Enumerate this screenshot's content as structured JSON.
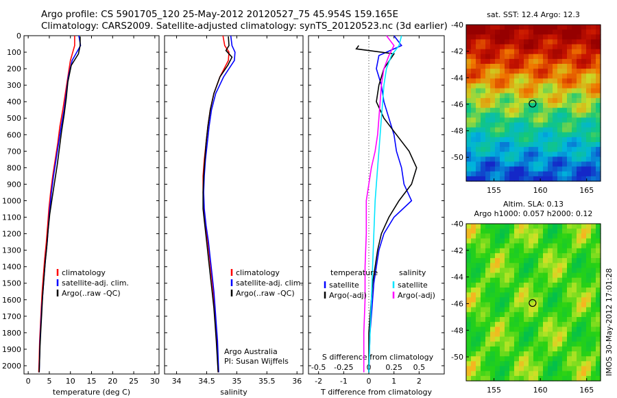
{
  "header": {
    "title_line1": "Argo profile: CS 5901705_120 25-May-2012 20120527_75 45.954S 159.165E",
    "title_line2": "Climatology: CARS2009. Satellite-adjusted climatology: synTS_20120523.nc (3d earlier)"
  },
  "colors": {
    "climatology": "#ff0000",
    "satellite": "#0000ff",
    "argo": "#000000",
    "sat_salinity": "#00e5ff",
    "argo_salinity_adj": "#ff00ff"
  },
  "footer": {
    "credit_line1": "Argo Australia",
    "credit_line2": "PI: Susan Wijffels",
    "timestamp": "IMOS 30-May-2012 17:01:28"
  },
  "maps": {
    "sst_title": "sat. SST: 12.4 Argo: 12.3",
    "sla_title_line1": "Altim. SLA: 0.13",
    "sla_title_line2": "Argo h1000: 0.057 h2000: 0.12",
    "y_ticks": [
      -40,
      -42,
      -44,
      -46,
      -48,
      -50
    ],
    "x_ticks": [
      155,
      160,
      165
    ],
    "lat_range": [
      -51.8,
      -40
    ],
    "lon_range": [
      152,
      166.5
    ],
    "float_position": {
      "lon": 159.165,
      "lat": -45.954
    }
  },
  "chart_data": [
    {
      "type": "line",
      "xlabel": "temperature (deg C)",
      "xlim": [
        -1,
        31
      ],
      "ylim": [
        0,
        2050
      ],
      "y_reversed": true,
      "y_ticks": [
        0,
        100,
        200,
        300,
        400,
        500,
        600,
        700,
        800,
        900,
        1000,
        1100,
        1200,
        1300,
        1400,
        1500,
        1600,
        1700,
        1800,
        1900,
        2000
      ],
      "x_ticks": [
        0,
        5,
        10,
        15,
        20,
        25,
        30
      ],
      "legend": [
        "climatology",
        "satellite-adj. clim.",
        "Argo(..raw -QC)"
      ],
      "legend_position": "lower-middle",
      "series": [
        {
          "name": "climatology",
          "color": "#ff0000",
          "x": [
            11.0,
            11.0,
            10.0,
            9.4,
            8.8,
            8.2,
            7.5,
            7.0,
            6.4,
            5.8,
            5.3,
            4.9,
            4.6,
            4.3,
            3.9,
            3.6,
            3.3,
            3.1,
            2.9,
            2.7,
            2.6,
            2.5
          ],
          "y": [
            0,
            60,
            150,
            250,
            350,
            450,
            550,
            650,
            750,
            850,
            950,
            1050,
            1150,
            1250,
            1350,
            1450,
            1550,
            1650,
            1750,
            1850,
            1950,
            2040
          ]
        },
        {
          "name": "satellite-adj. clim.",
          "color": "#0000ff",
          "x": [
            12.0,
            12.4,
            10.4,
            9.5,
            9.0,
            8.5,
            7.8,
            7.2,
            6.6,
            6.0,
            5.5,
            5.1,
            4.8,
            4.5,
            4.1,
            3.8,
            3.5,
            3.2,
            3.0,
            2.8,
            2.7,
            2.6
          ],
          "y": [
            0,
            60,
            150,
            250,
            350,
            450,
            550,
            650,
            750,
            850,
            950,
            1050,
            1150,
            1250,
            1350,
            1450,
            1550,
            1650,
            1750,
            1850,
            1950,
            2040
          ]
        },
        {
          "name": "Argo(..raw -QC)",
          "color": "#000000",
          "x": [
            12.3,
            12.3,
            11.9,
            10.2,
            9.4,
            9.0,
            8.5,
            7.9,
            7.4,
            6.9,
            6.3,
            5.7,
            5.1,
            4.7,
            4.4,
            4.0,
            3.7,
            3.4,
            3.2,
            3.0,
            2.8,
            2.7,
            2.6
          ],
          "y": [
            5,
            60,
            110,
            180,
            280,
            380,
            480,
            580,
            680,
            780,
            880,
            980,
            1080,
            1180,
            1280,
            1380,
            1480,
            1580,
            1680,
            1780,
            1880,
            1960,
            2040
          ]
        }
      ]
    },
    {
      "type": "line",
      "xlabel": "salinity",
      "xlim": [
        33.8,
        36.1
      ],
      "ylim": [
        0,
        2050
      ],
      "y_reversed": true,
      "x_ticks": [
        34,
        34.5,
        35,
        35.5,
        36
      ],
      "x_tick_labels": [
        "34",
        "34.5",
        "35",
        "35.5",
        "36"
      ],
      "legend": [
        "climatology",
        "satellite-adj. clim.",
        "Argo(..raw -QC)"
      ],
      "legend_position": "lower-right",
      "series": [
        {
          "name": "climatology",
          "color": "#ff0000",
          "x": [
            34.77,
            34.8,
            34.87,
            34.86,
            34.72,
            34.62,
            34.56,
            34.52,
            34.49,
            34.46,
            34.44,
            34.44,
            34.45,
            34.48,
            34.52,
            34.55,
            34.58,
            34.61,
            34.63,
            34.65,
            34.67,
            34.69
          ],
          "y": [
            0,
            60,
            100,
            150,
            250,
            350,
            450,
            550,
            650,
            750,
            850,
            950,
            1050,
            1150,
            1250,
            1350,
            1450,
            1550,
            1650,
            1750,
            1850,
            2040
          ]
        },
        {
          "name": "satellite-adj. clim.",
          "color": "#0000ff",
          "x": [
            34.9,
            34.92,
            34.97,
            34.96,
            34.78,
            34.65,
            34.58,
            34.54,
            34.51,
            34.48,
            34.46,
            34.45,
            34.46,
            34.49,
            34.53,
            34.56,
            34.59,
            34.62,
            34.64,
            34.66,
            34.68,
            34.7
          ],
          "y": [
            0,
            60,
            100,
            150,
            250,
            350,
            450,
            550,
            650,
            750,
            850,
            950,
            1050,
            1150,
            1250,
            1350,
            1450,
            1550,
            1650,
            1750,
            1850,
            2040
          ]
        },
        {
          "name": "Argo(..raw -QC)",
          "color": "#000000",
          "x": [
            34.86,
            34.87,
            34.82,
            34.92,
            34.85,
            34.72,
            34.62,
            34.56,
            34.52,
            34.49,
            34.47,
            34.45,
            34.44,
            34.44,
            34.47,
            34.5,
            34.53,
            34.56,
            34.59,
            34.62,
            34.64,
            34.66,
            34.69
          ],
          "y": [
            5,
            60,
            90,
            130,
            180,
            250,
            350,
            450,
            550,
            650,
            750,
            850,
            950,
            1050,
            1150,
            1250,
            1350,
            1450,
            1550,
            1650,
            1750,
            1850,
            2040
          ]
        }
      ]
    },
    {
      "type": "line",
      "xlabel": "T difference from climatology",
      "xlabel_top": "S difference from climatology",
      "xlim": [
        -2.4,
        3
      ],
      "ylim": [
        0,
        2050
      ],
      "y_reversed": true,
      "x_ticks": [
        -2,
        -1,
        0,
        1,
        2
      ],
      "x_tick_labels": [
        "-2",
        "-1",
        "0",
        "1",
        "2"
      ],
      "x_ticks_s": [
        -0.5,
        -0.25,
        0,
        0.25,
        0.5
      ],
      "x_tick_labels_s": [
        "-0.5",
        "-0.25",
        "0",
        "0.25",
        "0.5"
      ],
      "legend_temperature_heading": "temperature",
      "legend_salinity_heading": "salinity",
      "legend": [
        "satellite",
        "Argo(-adj)",
        "satellite",
        "Argo(-adj)"
      ],
      "legend_position": "lower-middle",
      "series": [
        {
          "name": "satellite",
          "group": "temperature",
          "color": "#0000ff",
          "x": [
            1.0,
            1.3,
            0.4,
            0.3,
            0.5,
            0.6,
            0.8,
            1.0,
            1.1,
            1.3,
            1.4,
            1.7,
            1.0,
            0.6,
            0.4,
            0.3,
            0.2,
            0.15,
            0.1,
            0.05,
            0.0
          ],
          "y": [
            0,
            60,
            120,
            200,
            300,
            400,
            500,
            600,
            700,
            800,
            900,
            1000,
            1100,
            1200,
            1300,
            1400,
            1500,
            1600,
            1700,
            1800,
            2040
          ]
        },
        {
          "name": "Argo(-adj)",
          "group": "temperature",
          "color": "#000000",
          "x": [
            -0.4,
            -0.5,
            1.0,
            0.6,
            0.4,
            0.3,
            0.6,
            1.1,
            1.6,
            1.9,
            1.7,
            1.2,
            0.8,
            0.5,
            0.35,
            0.25,
            0.15,
            0.1,
            0.05,
            0.0,
            0.0
          ],
          "y": [
            60,
            80,
            110,
            200,
            300,
            400,
            500,
            600,
            700,
            800,
            900,
            1000,
            1100,
            1200,
            1300,
            1400,
            1500,
            1600,
            1700,
            1800,
            2040
          ]
        },
        {
          "name": "satellite",
          "group": "salinity",
          "color": "#00e5ff",
          "x": [
            1.3,
            1.2,
            0.9,
            0.7,
            0.6,
            0.55,
            0.5,
            0.45,
            0.4,
            0.35,
            0.3,
            0.25,
            0.2,
            0.15,
            0.1,
            0.05,
            0.0
          ],
          "y": [
            0,
            60,
            120,
            200,
            300,
            400,
            500,
            600,
            700,
            800,
            900,
            1000,
            1200,
            1400,
            1600,
            1800,
            2040
          ]
        },
        {
          "name": "Argo(-adj)",
          "group": "salinity",
          "color": "#ff00ff",
          "x": [
            0.7,
            1.0,
            0.8,
            0.6,
            0.5,
            0.45,
            0.4,
            0.35,
            0.25,
            0.1,
            0.0,
            -0.1,
            -0.1,
            -0.15,
            -0.15,
            -0.2,
            -0.2
          ],
          "y": [
            0,
            60,
            120,
            200,
            300,
            400,
            500,
            600,
            700,
            800,
            900,
            1000,
            1200,
            1400,
            1600,
            1800,
            2040
          ]
        }
      ]
    }
  ]
}
